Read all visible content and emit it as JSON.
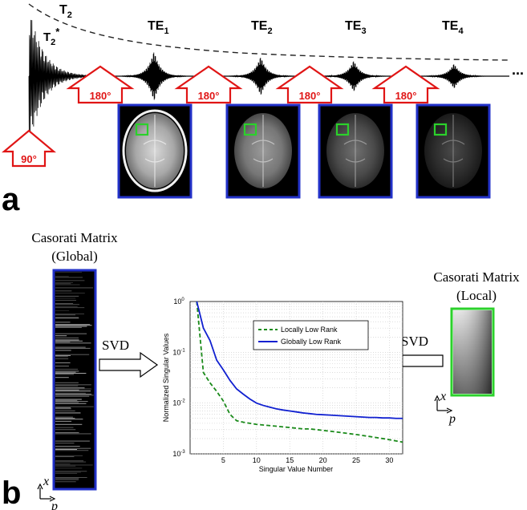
{
  "panel_a": {
    "panel_label": "a",
    "t2_label": "T",
    "t2_sub": "2",
    "t2star_label": "T",
    "t2star_sub": "2",
    "t2star_sup": "*",
    "te_main": "TE",
    "echo_subs": [
      "1",
      "2",
      "3",
      "4"
    ],
    "ellipsis": "...",
    "pulse_90": "90°",
    "pulse_180": "180°",
    "colors": {
      "pulse_red": "#e01515",
      "frame_blue": "#2231c8",
      "roi_green": "#2bd12b"
    }
  },
  "panel_b": {
    "panel_label": "b",
    "global_title": [
      "Casorati Matrix",
      "(Global)"
    ],
    "local_title": [
      "Casorati Matrix",
      "(Local)"
    ],
    "svd_left": "SVD",
    "svd_right": "SVD",
    "axis_x": "x",
    "axis_p": "p"
  },
  "chart_data": {
    "type": "line",
    "xlabel": "Singular Value Number",
    "ylabel": "Normalized Singular Values",
    "xlim": [
      0,
      32
    ],
    "ylim": [
      0.001,
      1
    ],
    "yscale": "log",
    "grid": true,
    "xticks": [
      "5",
      "10",
      "15",
      "20",
      "25",
      "30"
    ],
    "yticks": [
      "10",
      "10",
      "10",
      "10"
    ],
    "ytick_exps": [
      "0",
      "-1",
      "-2",
      "-3"
    ],
    "legend_position": "top-right",
    "x": [
      1,
      2,
      3,
      4,
      5,
      6,
      7,
      8,
      9,
      10,
      11,
      12,
      13,
      14,
      15,
      16,
      17,
      18,
      19,
      20,
      21,
      22,
      23,
      24,
      25,
      26,
      27,
      28,
      29,
      30,
      31,
      32
    ],
    "series": [
      {
        "name": "Locally Low Rank",
        "color": "#1a8a1a",
        "dash": true,
        "values": [
          1.0,
          0.04,
          0.025,
          0.017,
          0.011,
          0.006,
          0.0045,
          0.0042,
          0.004,
          0.0038,
          0.0037,
          0.0036,
          0.0035,
          0.0034,
          0.0033,
          0.0032,
          0.0031,
          0.0031,
          0.003,
          0.0029,
          0.0028,
          0.0027,
          0.0026,
          0.0025,
          0.0024,
          0.0023,
          0.0022,
          0.0021,
          0.002,
          0.0019,
          0.0018,
          0.0017
        ]
      },
      {
        "name": "Globally Low Rank",
        "color": "#1020d0",
        "dash": false,
        "values": [
          1.0,
          0.3,
          0.17,
          0.07,
          0.045,
          0.028,
          0.019,
          0.015,
          0.012,
          0.01,
          0.009,
          0.0083,
          0.0077,
          0.0073,
          0.007,
          0.0067,
          0.0064,
          0.0062,
          0.006,
          0.0059,
          0.0058,
          0.0057,
          0.0056,
          0.0055,
          0.0054,
          0.0053,
          0.0052,
          0.0052,
          0.0051,
          0.0051,
          0.005,
          0.005
        ]
      }
    ]
  }
}
